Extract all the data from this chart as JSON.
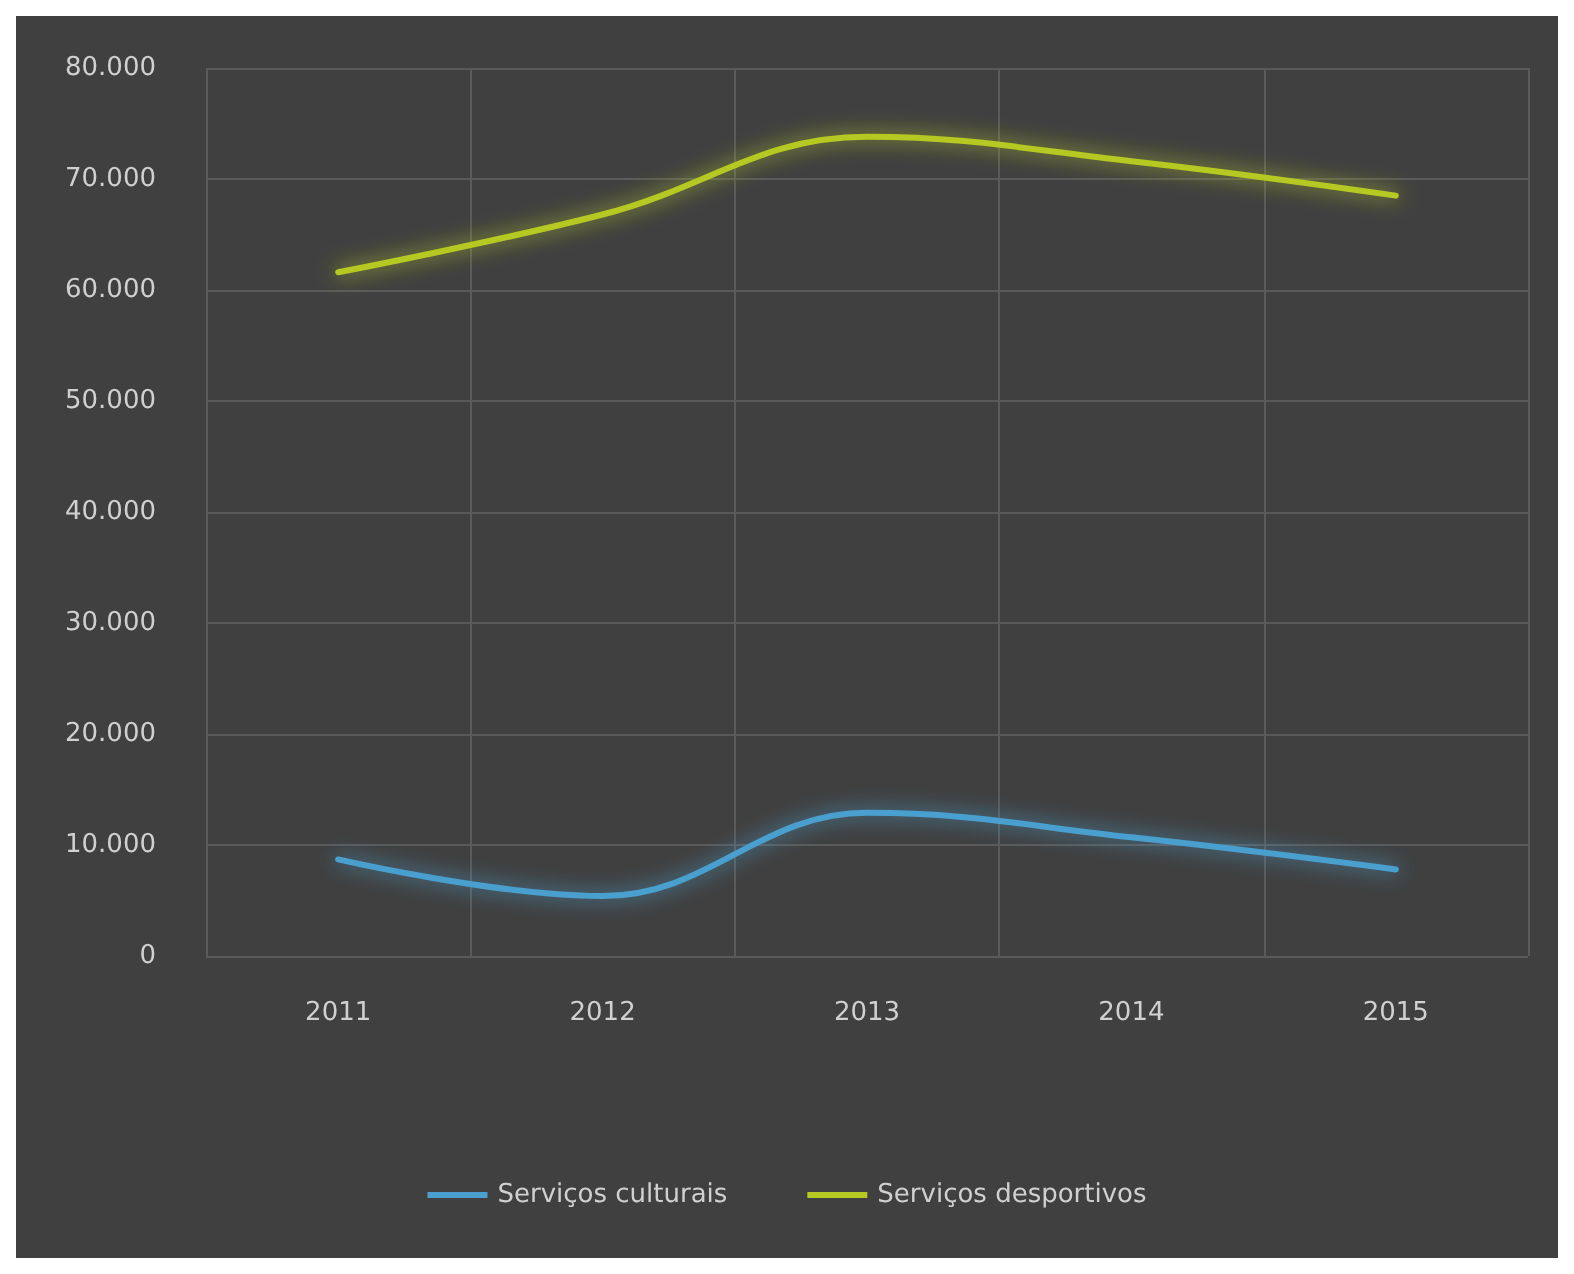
{
  "chart_data": {
    "type": "line",
    "categories": [
      "2011",
      "2012",
      "2013",
      "2014",
      "2015"
    ],
    "series": [
      {
        "name": "Serviços culturais",
        "color": "#4a9fce",
        "values": [
          8700,
          5400,
          12900,
          10700,
          7800
        ]
      },
      {
        "name": "Serviços desportivos",
        "color": "#b5c922",
        "values": [
          61600,
          66800,
          73800,
          71600,
          68500
        ]
      }
    ],
    "ylim": [
      0,
      80000
    ],
    "yticks": [
      0,
      {
        "value": 10000,
        "label": "10.000"
      },
      {
        "value": 20000,
        "label": "20.000"
      },
      {
        "value": 30000,
        "label": "30.000"
      },
      {
        "value": 40000,
        "label": "40.000"
      },
      {
        "value": 50000,
        "label": "50.000"
      },
      {
        "value": 60000,
        "label": "60.000"
      },
      {
        "value": 70000,
        "label": "70.000"
      },
      {
        "value": 80000,
        "label": "80.000"
      }
    ],
    "grid": true,
    "legend": "bottom",
    "marker": "none",
    "line_style": "solid"
  }
}
